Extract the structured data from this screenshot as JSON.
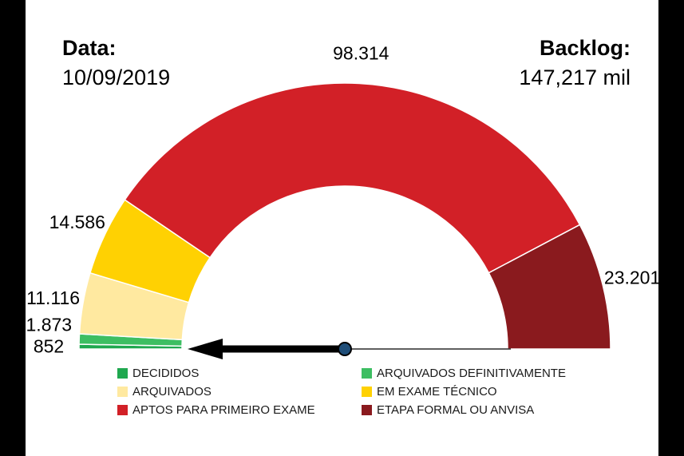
{
  "header": {
    "date_label": "Data:",
    "date_value": "10/09/2019",
    "backlog_label": "Backlog:",
    "backlog_value": "147,217 mil"
  },
  "chart_data": {
    "type": "pie",
    "subtype": "semicircle-donut-gauge",
    "title": "",
    "legend_position": "bottom",
    "start_angle_deg": 180,
    "end_angle_deg": 0,
    "needle_angle_deg": 180,
    "total": 149942,
    "needle_color": "#000000",
    "hub_color": "#1F4E79",
    "segments": [
      {
        "id": "decididos",
        "label": "DECIDIDOS",
        "value": 852,
        "display": "852",
        "color": "#1FA84F"
      },
      {
        "id": "arquivados-definitivamente",
        "label": "ARQUIVADOS DEFINITIVAMENTE",
        "value": 1873,
        "display": "1.873",
        "color": "#3DBE62"
      },
      {
        "id": "arquivados",
        "label": "ARQUIVADOS",
        "value": 11116,
        "display": "11.116",
        "color": "#FFE9A0"
      },
      {
        "id": "em-exame-tecnico",
        "label": "EM EXAME TÉCNICO",
        "value": 14586,
        "display": "14.586",
        "color": "#FFD102"
      },
      {
        "id": "aptos-para-primeiro-exame",
        "label": "APTOS PARA PRIMEIRO EXAME",
        "value": 98314,
        "display": "98.314",
        "color": "#D22027"
      },
      {
        "id": "etapa-formal-ou-anvisa",
        "label": "ETAPA FORMAL OU ANVISA",
        "value": 23201,
        "display": "23.201",
        "color": "#8A1A1E"
      }
    ]
  }
}
